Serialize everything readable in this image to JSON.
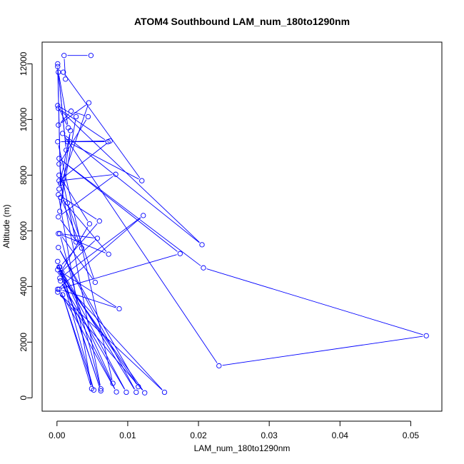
{
  "chart_data": {
    "type": "line",
    "title": "ATOM4 Southbound LAM_num_180to1290nm",
    "xlabel": "LAM_num_180to1290nm",
    "ylabel": "Altitude (m)",
    "xlim": [
      -0.0021,
      0.0544
    ],
    "ylim": [
      -480,
      12780
    ],
    "x_ticks": [
      0.0,
      0.01,
      0.02,
      0.03,
      0.04,
      0.05
    ],
    "x_tick_labels": [
      "0.00",
      "0.01",
      "0.02",
      "0.03",
      "0.04",
      "0.05"
    ],
    "y_ticks": [
      0,
      2000,
      4000,
      6000,
      8000,
      10000,
      12000
    ],
    "y_tick_labels": [
      "0",
      "2000",
      "4000",
      "6000",
      "8000",
      "10000",
      "12000"
    ],
    "grid": false,
    "markers": "open-circle",
    "colors": {
      "series": "#0000ff",
      "axis": "#000000"
    },
    "series": [
      {
        "x": [
          0.0048,
          0.001,
          0.0012,
          0.0009,
          0.012,
          0.0015,
          0.0072,
          0.0002,
          0.0205,
          0.0008,
          0.0229,
          0.0522,
          0.0207,
          0.0003,
          0.0174,
          0.0001,
          0.0122,
          0.0004,
          0.0152,
          0.0001,
          0.0124,
          0.0001,
          0.0115,
          0.0002,
          0.0112,
          0.0003,
          0.0098,
          0.0005,
          0.0084,
          0.0003,
          0.0088,
          0.0007,
          0.0062,
          0.0001,
          0.0052,
          0.0008,
          0.0049,
          0.0002,
          0.006,
          0.0004,
          0.0079,
          0.0001,
          0.0075,
          0.0003,
          0.0083,
          0.0002,
          0.0035,
          0.0005,
          0.0073,
          0.0002,
          0.0057,
          0.0005,
          0.0046,
          0.0003,
          0.0062,
          0.0004,
          0.0054,
          0.0015,
          0.0027,
          0.0003,
          0.0044,
          0.002,
          0.0002,
          0.0045,
          0.0003,
          0.0019,
          0.0004,
          0.0027,
          0.0001,
          0.0016,
          0.0002,
          0.0013,
          0.0001,
          0.0005,
          0.0001
        ],
        "y": [
          12300,
          12300,
          11450,
          11700,
          7800,
          9200,
          9200,
          10400,
          5500,
          9500,
          1150,
          2230,
          4670,
          8600,
          5180,
          3900,
          6550,
          4300,
          200,
          3800,
          180,
          4600,
          400,
          5400,
          200,
          4700,
          200,
          4200,
          210,
          3900,
          3200,
          4500,
          250,
          4900,
          280,
          3700,
          330,
          7300,
          6350,
          4700,
          520,
          9200,
          9230,
          7800,
          8030,
          6500,
          5380,
          7200,
          5160,
          5900,
          5730,
          4500,
          6250,
          8000,
          320,
          5900,
          4150,
          7000,
          5600,
          8400,
          10100,
          10300,
          9800,
          10600,
          7500,
          9600,
          6700,
          10100,
          10500,
          9700,
          11700,
          8900,
          11900,
          7700,
          12000
        ]
      }
    ]
  }
}
